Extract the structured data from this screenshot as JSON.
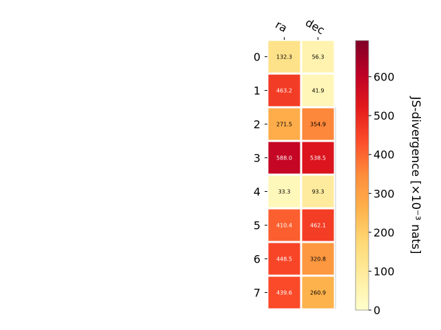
{
  "chart_data": {
    "type": "heatmap",
    "columns": [
      "ra",
      "dec"
    ],
    "rows": [
      "0",
      "1",
      "2",
      "3",
      "4",
      "5",
      "6",
      "7"
    ],
    "values": [
      [
        132.3,
        56.3
      ],
      [
        463.2,
        41.9
      ],
      [
        271.5,
        354.9
      ],
      [
        588.0,
        538.5
      ],
      [
        33.3,
        93.3
      ],
      [
        410.4,
        462.1
      ],
      [
        448.5,
        320.8
      ],
      [
        439.6,
        260.9
      ]
    ],
    "value_labels": [
      [
        "132.3",
        "56.3"
      ],
      [
        "463.2",
        "41.9"
      ],
      [
        "271.5",
        "354.9"
      ],
      [
        "588.0",
        "538.5"
      ],
      [
        "33.3",
        "93.3"
      ],
      [
        "410.4",
        "462.1"
      ],
      [
        "448.5",
        "320.8"
      ],
      [
        "439.6",
        "260.9"
      ]
    ],
    "colorbar": {
      "label": "JS-divergence [×10⁻³ nats]",
      "range": [
        0,
        693
      ],
      "ticks": [
        0,
        100,
        200,
        300,
        400,
        500,
        600
      ],
      "tick_labels": [
        "0",
        "100",
        "200",
        "300",
        "400",
        "500",
        "600"
      ],
      "colormap": "YlOrRd"
    },
    "colors": {
      "low": "#ffffcc",
      "high": "#800026",
      "cell_border": "#ffffff"
    }
  }
}
